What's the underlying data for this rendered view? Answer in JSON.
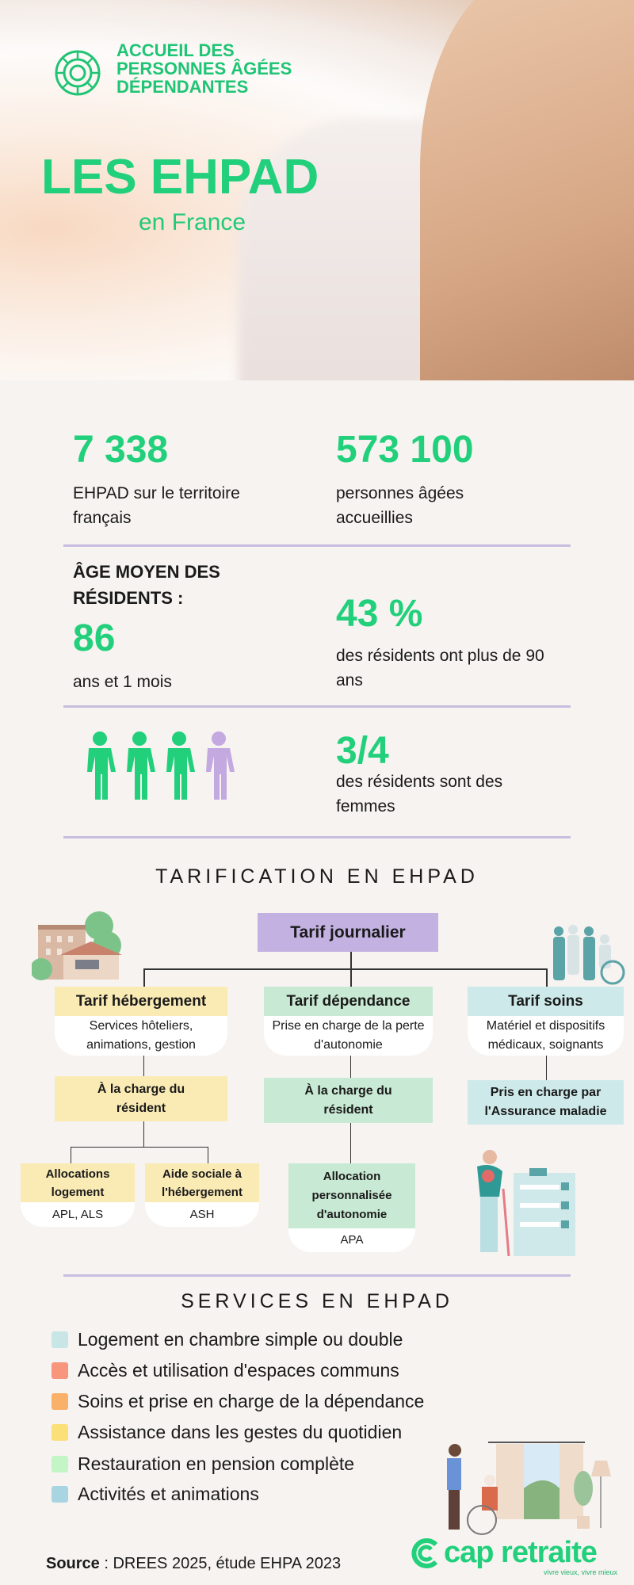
{
  "header": {
    "logo_lines": [
      "ACCUEIL DES",
      "PERSONNES ÂGÉES",
      "DÉPENDANTES"
    ],
    "title": "LES EHPAD",
    "subtitle": "en France"
  },
  "stats": {
    "ehpad_count": {
      "value": "7 338",
      "label": "EHPAD sur le territoire français"
    },
    "residents": {
      "value": "573 100",
      "label": "personnes âgées accueillies"
    },
    "age": {
      "heading": "ÂGE MOYEN DES RÉSIDENTS :",
      "value": "86",
      "label": "ans et 1 mois"
    },
    "over90": {
      "value": "43 %",
      "label": "des résidents ont plus de 90 ans"
    },
    "women": {
      "value": "3/4",
      "label": "des résidents sont des femmes",
      "fraction": 0.75
    }
  },
  "tarification": {
    "title": "TARIFICATION EN EHPAD",
    "root": "Tarif journalier",
    "columns": [
      {
        "title": "Tarif hébergement",
        "desc": "Services hôteliers, animations, gestion",
        "charge": "À la charge du résident",
        "children": [
          {
            "title": "Allocations logement",
            "desc": "APL, ALS"
          },
          {
            "title": "Aide sociale à l'hébergement",
            "desc": "ASH"
          }
        ]
      },
      {
        "title": "Tarif dépendance",
        "desc": "Prise en charge de la perte d'autonomie",
        "charge": "À la charge du résident",
        "children": [
          {
            "title": "Allocation personnalisée d'autonomie",
            "desc": "APA"
          }
        ]
      },
      {
        "title": "Tarif soins",
        "desc": "Matériel et dispositifs médicaux, soignants",
        "charge": "Pris en charge par l'Assurance maladie"
      }
    ]
  },
  "services": {
    "title": "SERVICES EN EHPAD",
    "items": [
      {
        "label": "Logement en chambre simple ou double",
        "color": "#c9e6e6"
      },
      {
        "label": "Accès et utilisation d'espaces communs",
        "color": "#f7967c"
      },
      {
        "label": "Soins et prise en charge de la dépendance",
        "color": "#f9b068"
      },
      {
        "label": "Assistance dans les gestes du quotidien",
        "color": "#fbe07a"
      },
      {
        "label": "Restauration en pension complète",
        "color": "#c3f5c7"
      },
      {
        "label": "Activités et animations",
        "color": "#a9d5e3"
      }
    ]
  },
  "footer": {
    "source_label": "Source",
    "source_text": " : DREES 2025, étude EHPA 2023",
    "brand": "cap retraite",
    "tagline": "vivre vieux, vivre mieux"
  },
  "colors": {
    "accent": "#22d07c",
    "divider": "#c9bde0",
    "purple": "#c3b1e1"
  }
}
